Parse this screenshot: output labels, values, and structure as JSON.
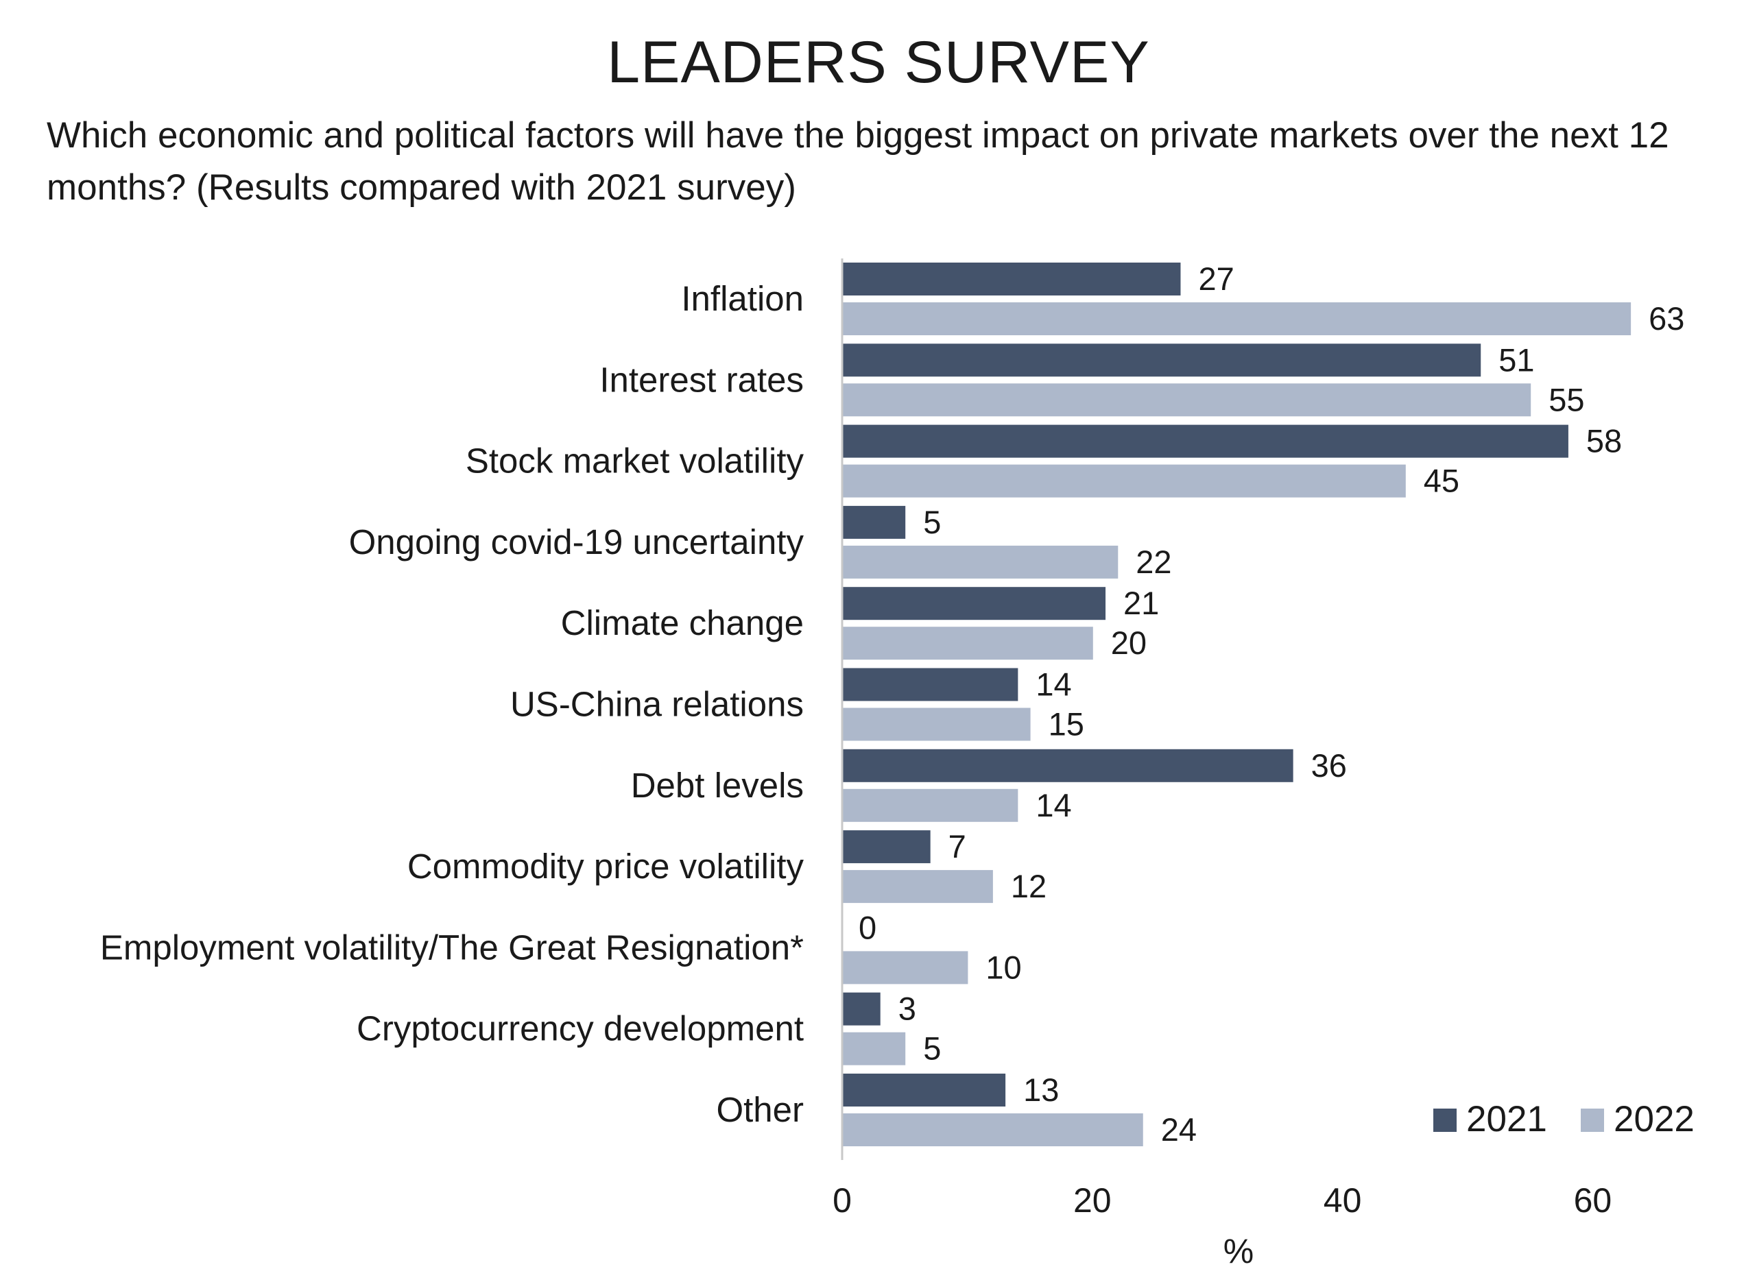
{
  "chart_data": {
    "type": "bar",
    "orientation": "horizontal",
    "title": "LEADERS SURVEY",
    "subtitle": "Which economic and political factors will have the biggest impact on private markets over the next 12 months? (Results compared with 2021 survey)",
    "xlabel": "%",
    "ylabel": "",
    "xlim": [
      0,
      70
    ],
    "xticks": [
      0,
      20,
      40,
      60
    ],
    "grid": false,
    "legend_position": "bottom-right",
    "categories": [
      "Inflation",
      "Interest rates",
      "Stock market volatility",
      "Ongoing covid-19 uncertainty",
      "Climate change",
      "US-China relations",
      "Debt levels",
      "Commodity price volatility",
      "Employment volatility/The Great Resignation*",
      "Cryptocurrency development",
      "Other"
    ],
    "series": [
      {
        "name": "2021",
        "color": "#44536b",
        "values": [
          27,
          51,
          58,
          5,
          21,
          14,
          36,
          7,
          0,
          3,
          13
        ]
      },
      {
        "name": "2022",
        "color": "#adb8cb",
        "values": [
          63,
          55,
          45,
          22,
          20,
          15,
          14,
          12,
          10,
          5,
          24
        ]
      }
    ]
  }
}
